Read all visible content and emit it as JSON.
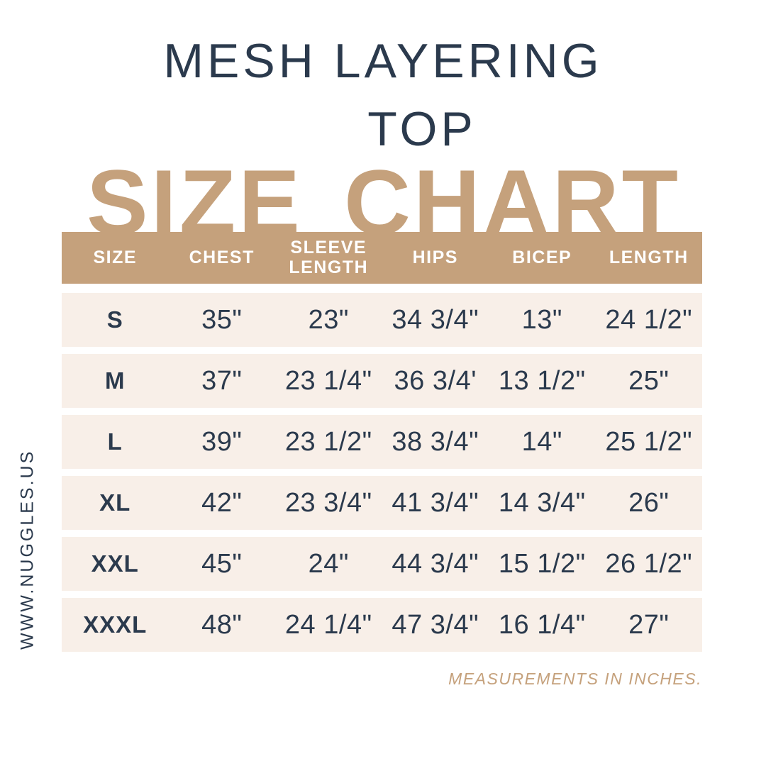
{
  "header": {
    "title_line1": "MESH LAYERING",
    "title_line2": "TOP",
    "chart_heading": "SIZE CHART"
  },
  "footer": {
    "website": "WWW.NUGGLES.US",
    "note": "MEASUREMENTS IN INCHES."
  },
  "colors": {
    "navy": "#2b3a4d",
    "tan": "#c5a17c",
    "cream": "#f8efe8",
    "background": "#ffffff",
    "header_text": "#ffffff"
  },
  "chart_data": {
    "type": "table",
    "title": "MESH LAYERING TOP SIZE CHART",
    "units": "inches",
    "columns": [
      "SIZE",
      "CHEST",
      "SLEEVE LENGTH",
      "HIPS",
      "BICEP",
      "LENGTH"
    ],
    "rows": [
      [
        "S",
        "35\"",
        "23\"",
        "34 3/4\"",
        "13\"",
        "24 1/2\""
      ],
      [
        "M",
        "37\"",
        "23 1/4\"",
        "36 3/4'",
        "13 1/2\"",
        "25\""
      ],
      [
        "L",
        "39\"",
        "23 1/2\"",
        "38 3/4\"",
        "14\"",
        "25 1/2\""
      ],
      [
        "XL",
        "42\"",
        "23 3/4\"",
        "41 3/4\"",
        "14 3/4\"",
        "26\""
      ],
      [
        "XXL",
        "45\"",
        "24\"",
        "44 3/4\"",
        "15 1/2\"",
        "26 1/2\""
      ],
      [
        "XXXL",
        "48\"",
        "24 1/4\"",
        "47 3/4\"",
        "16 1/4\"",
        "27\""
      ]
    ]
  }
}
